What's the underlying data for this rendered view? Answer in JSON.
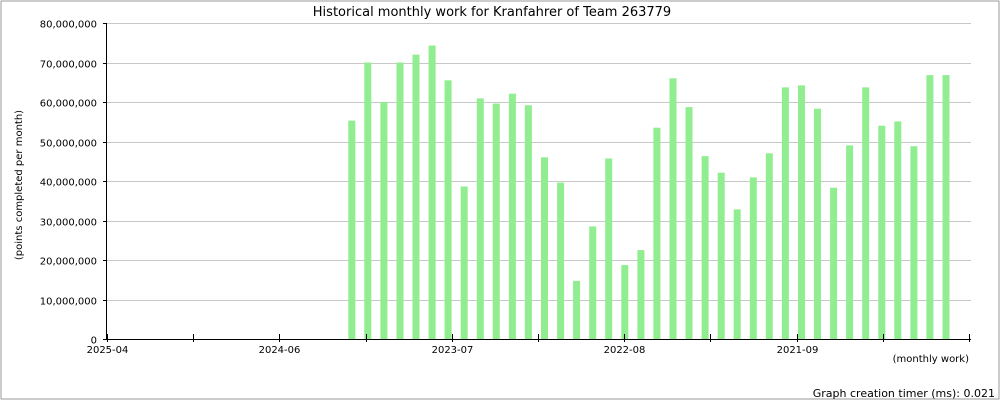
{
  "chart_data": {
    "type": "bar",
    "title": "Historical monthly work for Kranfahrer of Team 263779",
    "ylabel": "(points completed per month)",
    "xlabel": "(monthly work)",
    "ylim": [
      0,
      80000000
    ],
    "yticks": [
      0,
      10000000,
      20000000,
      30000000,
      40000000,
      50000000,
      60000000,
      70000000,
      80000000
    ],
    "ytick_labels": [
      "0",
      "10,000,000",
      "20,000,000",
      "30,000,000",
      "40,000,000",
      "50,000,000",
      "60,000,000",
      "70,000,000",
      "80,000,000"
    ],
    "xtick_labels": [
      "2025-04",
      "2024-06",
      "2023-07",
      "2022-08",
      "2021-09"
    ],
    "grid": true,
    "bar_color": "#90ee90",
    "values": [
      55300000,
      70000000,
      60000000,
      70000000,
      72000000,
      74300000,
      65500000,
      38600000,
      60900000,
      59600000,
      62100000,
      59200000,
      46000000,
      39600000,
      14700000,
      28500000,
      45700000,
      18700000,
      22500000,
      53500000,
      66000000,
      58700000,
      46300000,
      42100000,
      32800000,
      40900000,
      47000000,
      63700000,
      64200000,
      58300000,
      38300000,
      49000000,
      63700000,
      54000000,
      55100000,
      48800000,
      66800000,
      66800000
    ]
  },
  "footer": {
    "timer_text": "Graph creation timer (ms): 0.021"
  }
}
